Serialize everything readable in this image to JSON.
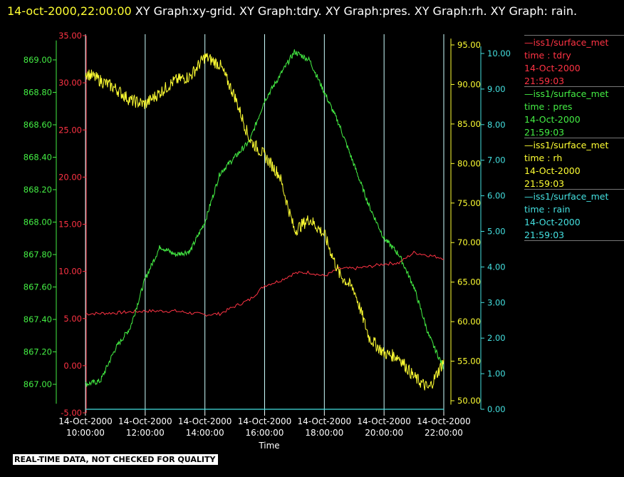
{
  "header": {
    "timestamp": "14-oct-2000,22:00:00",
    "text": " XY Graph:xy-grid.  XY Graph:tdry.  XY Graph:pres.  XY Graph:rh.  XY Graph: rain."
  },
  "footer_note": "REAL-TIME DATA, NOT CHECKED FOR QUALITY",
  "colors": {
    "tdry": "#ff3344",
    "pres": "#44ee44",
    "rh": "#ffff33",
    "rain": "#44e0e0",
    "grid": "#ccffff",
    "background": "#000000"
  },
  "legend": [
    {
      "color_key": "tdry",
      "lines": [
        "—iss1/surface_met",
        "time : tdry",
        "14-Oct-2000",
        "21:59:03"
      ]
    },
    {
      "color_key": "pres",
      "lines": [
        "—iss1/surface_met",
        "time : pres",
        "14-Oct-2000",
        "21:59:03"
      ]
    },
    {
      "color_key": "rh",
      "lines": [
        "—iss1/surface_met",
        "time : rh",
        "14-Oct-2000",
        "21:59:03"
      ]
    },
    {
      "color_key": "rain",
      "lines": [
        "—iss1/surface_met",
        "time : rain",
        "14-Oct-2000",
        "21:59:03"
      ]
    }
  ],
  "chart_data": {
    "type": "line",
    "xlabel": "Time",
    "x_range": [
      "14-Oct-2000 10:00:00",
      "14-Oct-2000 22:00:00"
    ],
    "x_ticks": [
      [
        "14-Oct-2000",
        "10:00:00"
      ],
      [
        "14-Oct-2000",
        "12:00:00"
      ],
      [
        "14-Oct-2000",
        "14:00:00"
      ],
      [
        "14-Oct-2000",
        "16:00:00"
      ],
      [
        "14-Oct-2000",
        "18:00:00"
      ],
      [
        "14-Oct-2000",
        "20:00:00"
      ],
      [
        "14-Oct-2000",
        "22:00:00"
      ]
    ],
    "grid": "vertical lines at each x tick",
    "axes": {
      "pres": {
        "side": "left",
        "range": [
          866.88,
          869.12
        ],
        "ticks": [
          "867.00",
          "867.20",
          "867.40",
          "867.60",
          "867.80",
          "868.00",
          "868.20",
          "868.40",
          "868.60",
          "868.80",
          "869.00"
        ]
      },
      "tdry": {
        "side": "left",
        "range": [
          -5,
          35
        ],
        "ticks": [
          "-5.00",
          "0.00",
          "5.00",
          "10.00",
          "15.00",
          "20.00",
          "25.00",
          "30.00",
          "35.00"
        ]
      },
      "rh": {
        "side": "right",
        "range": [
          49.5,
          95.8
        ],
        "ticks": [
          "50.00",
          "55.00",
          "60.00",
          "65.00",
          "70.00",
          "75.00",
          "80.00",
          "85.00",
          "90.00",
          "95.00"
        ]
      },
      "rain": {
        "side": "right",
        "range": [
          0,
          10.2
        ],
        "ticks": [
          "0.00",
          "1.00",
          "2.00",
          "3.00",
          "4.00",
          "5.00",
          "6.00",
          "7.00",
          "8.00",
          "9.00",
          "10.00"
        ]
      }
    },
    "series": [
      {
        "name": "tdry",
        "axis": "tdry",
        "x_hours": [
          10,
          11,
          12,
          13,
          14,
          14.5,
          15,
          15.5,
          16,
          16.5,
          17,
          17.5,
          18,
          18.5,
          19,
          19.5,
          20,
          20.5,
          21,
          21.5,
          22
        ],
        "values": [
          5.5,
          5.6,
          5.8,
          5.8,
          5.4,
          5.5,
          6.3,
          7.0,
          8.5,
          9.0,
          9.8,
          9.9,
          9.5,
          10.3,
          10.3,
          10.5,
          10.8,
          10.9,
          12.0,
          11.7,
          11.4
        ]
      },
      {
        "name": "pres",
        "axis": "pres",
        "x_hours": [
          10,
          10.5,
          11,
          11.5,
          12,
          12.5,
          13,
          13.5,
          14,
          14.5,
          15,
          15.5,
          16,
          16.5,
          17,
          17.5,
          18,
          18.5,
          19,
          19.5,
          20,
          20.5,
          21,
          21.5,
          22
        ],
        "values": [
          867.0,
          867.02,
          867.22,
          867.35,
          867.65,
          867.85,
          867.8,
          867.82,
          868.0,
          868.3,
          868.4,
          868.5,
          868.75,
          868.9,
          869.05,
          869.0,
          868.8,
          868.6,
          868.35,
          868.1,
          867.9,
          867.8,
          867.6,
          867.3,
          867.1
        ]
      },
      {
        "name": "rh",
        "axis": "rh",
        "x_hours": [
          10,
          10.5,
          11,
          11.5,
          12,
          12.5,
          13,
          13.5,
          14,
          14.5,
          15,
          15.5,
          16,
          16.5,
          17,
          17.5,
          18,
          18.5,
          19,
          19.5,
          20,
          20.5,
          21,
          21.5,
          22
        ],
        "values": [
          91.5,
          90.5,
          89.5,
          88.0,
          87.5,
          89.0,
          90.5,
          91.0,
          93.5,
          92.5,
          88.5,
          83.0,
          81.0,
          78.5,
          71.5,
          73.0,
          71.0,
          66.0,
          64.0,
          58.0,
          56.0,
          55.5,
          53.0,
          51.5,
          55.0
        ]
      },
      {
        "name": "rain",
        "axis": "rain",
        "x_hours": [
          10,
          22
        ],
        "values": [
          0.0,
          0.0
        ]
      }
    ]
  }
}
